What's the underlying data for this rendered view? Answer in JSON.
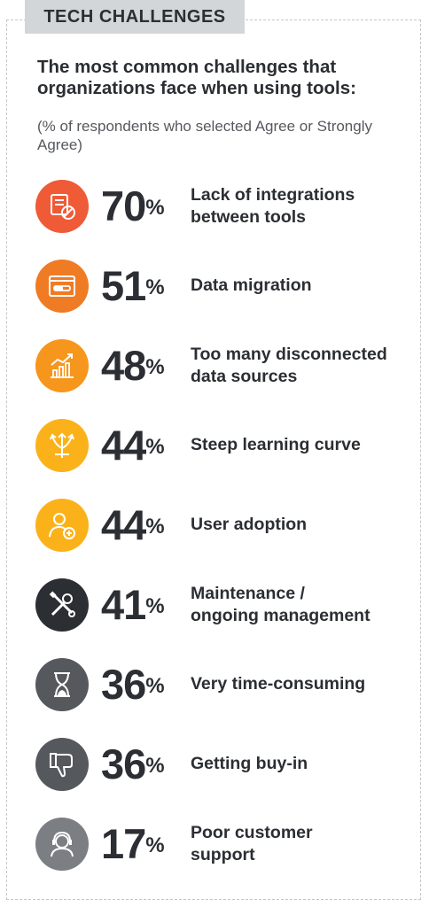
{
  "header": {
    "tag": "TECH CHALLENGES"
  },
  "intro": {
    "title": "The most common challenges that organizations face when using tools:",
    "note": "(% of respondents who selected Agree or Strongly Agree)"
  },
  "chart_data": {
    "type": "table",
    "categories": [
      "Lack of integrations between tools",
      "Data migration",
      "Too many disconnected data sources",
      "Steep learning curve",
      "User adoption",
      "Maintenance / ongoing management",
      "Very time-consuming",
      "Getting buy-in",
      "Poor customer support"
    ],
    "values": [
      70,
      51,
      48,
      44,
      44,
      41,
      36,
      36,
      17
    ],
    "unit": "%"
  },
  "rows": [
    {
      "value": "70",
      "unit": "%",
      "label_lines": [
        "Lack of integrations",
        "between tools"
      ],
      "icon": "server-blocked-icon",
      "color": "#ef5a37"
    },
    {
      "value": "51",
      "unit": "%",
      "label_lines": [
        "Data migration"
      ],
      "icon": "browser-progress-icon",
      "color": "#f07b25"
    },
    {
      "value": "48",
      "unit": "%",
      "label_lines": [
        "Too many disconnected",
        "data sources"
      ],
      "icon": "bar-chart-trend-icon",
      "color": "#f7961d"
    },
    {
      "value": "44",
      "unit": "%",
      "label_lines": [
        "Steep learning curve"
      ],
      "icon": "diverging-arrows-icon",
      "color": "#fbb21a"
    },
    {
      "value": "44",
      "unit": "%",
      "label_lines": [
        "User adoption"
      ],
      "icon": "add-user-icon",
      "color": "#fbb21a"
    },
    {
      "value": "41",
      "unit": "%",
      "label_lines": [
        "Maintenance /",
        "ongoing management"
      ],
      "icon": "wrench-screwdriver-icon",
      "color": "#2b2e33"
    },
    {
      "value": "36",
      "unit": "%",
      "label_lines": [
        "Very time-consuming"
      ],
      "icon": "hourglass-icon",
      "color": "#55595e"
    },
    {
      "value": "36",
      "unit": "%",
      "label_lines": [
        "Getting buy-in"
      ],
      "icon": "thumbs-down-icon",
      "color": "#55595e"
    },
    {
      "value": "17",
      "unit": "%",
      "label_lines": [
        "Poor customer",
        "support"
      ],
      "icon": "support-agent-icon",
      "color": "#7b7f84"
    }
  ]
}
